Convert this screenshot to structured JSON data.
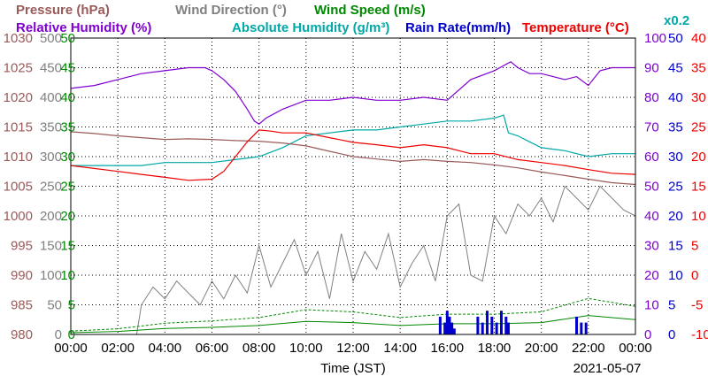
{
  "chart_data": {
    "type": "line",
    "date": "2021-05-07",
    "xlabel": "Time (JST)",
    "x_ticks": [
      "00:00",
      "02:00",
      "04:00",
      "06:00",
      "08:00",
      "10:00",
      "12:00",
      "14:00",
      "16:00",
      "18:00",
      "20:00",
      "22:00",
      "00:00"
    ],
    "legend": [
      {
        "label": "Pressure (hPa)",
        "color": "#9a5a5a"
      },
      {
        "label": "Wind Direction (°)",
        "color": "#808080"
      },
      {
        "label": "Wind Speed (m/s)",
        "color": "#008800"
      },
      {
        "label": "Relative Humidity (%)",
        "color": "#8000d0"
      },
      {
        "label": "Absolute Humidity (g/m³)",
        "color": "#00a8a8"
      },
      {
        "label": "Rain Rate(mm/h)",
        "color": "#0000cc"
      },
      {
        "label": "Temperature (°C)",
        "color": "#ee0000"
      },
      {
        "label": "x0.2",
        "color": "#00a8a8"
      }
    ],
    "axes": {
      "pressure": {
        "labels": [
          "1030",
          "1025",
          "1020",
          "1015",
          "1010",
          "1005",
          "1000",
          "995",
          "990",
          "985",
          "980"
        ],
        "range": [
          980,
          1030
        ],
        "color": "#9a5a5a"
      },
      "wind_direction": {
        "labels": [
          "500",
          "450",
          "400",
          "350",
          "300",
          "250",
          "200",
          "150",
          "100",
          "50",
          "0"
        ],
        "range": [
          0,
          500
        ],
        "color": "#808080"
      },
      "wind_speed": {
        "labels": [
          "50",
          "45",
          "40",
          "35",
          "30",
          "25",
          "20",
          "15",
          "10",
          "5",
          "0"
        ],
        "range": [
          0,
          50
        ],
        "color": "#008800"
      },
      "humidity": {
        "labels": [
          "100",
          "90",
          "80",
          "70",
          "60",
          "50",
          "40",
          "30",
          "20",
          "10",
          "0"
        ],
        "range": [
          0,
          100
        ],
        "color": "#8000d0"
      },
      "rain_rate": {
        "labels": [
          "50",
          "45",
          "40",
          "35",
          "30",
          "25",
          "20",
          "15",
          "10",
          "5",
          "0"
        ],
        "range": [
          0,
          50
        ],
        "color": "#0000cc"
      },
      "temperature": {
        "labels": [
          "40",
          "35",
          "30",
          "25",
          "20",
          "15",
          "10",
          "5",
          "0",
          "-5",
          "-10"
        ],
        "range": [
          -10,
          40
        ],
        "color": "#ee0000"
      }
    },
    "series": [
      {
        "name": "Relative Humidity (%)",
        "axis": "humidity",
        "color": "#8000d0",
        "x": [
          0,
          1,
          2,
          3,
          4,
          5,
          5.7,
          6,
          6.5,
          7,
          7.5,
          7.8,
          8,
          8.3,
          9,
          10,
          11,
          12,
          13,
          14,
          15,
          16,
          17,
          18,
          18.7,
          19,
          19.5,
          20,
          21,
          21.5,
          22,
          22.5,
          23,
          24
        ],
        "y": [
          83,
          84,
          86,
          88,
          89,
          90,
          90,
          89,
          86,
          82,
          76,
          72,
          71,
          73,
          76,
          79,
          79,
          80,
          79,
          79,
          80,
          79,
          86,
          89,
          92,
          90,
          88,
          88,
          86,
          87,
          84,
          89,
          90,
          90
        ]
      },
      {
        "name": "Absolute Humidity (g/m³)",
        "axis": "humidity",
        "color": "#00a8a8",
        "x": [
          0,
          1,
          2,
          3,
          4,
          5,
          6,
          7,
          8,
          9,
          10,
          11,
          12,
          13,
          14,
          15,
          16,
          17,
          18,
          18.4,
          18.6,
          19,
          19.5,
          20,
          21,
          22,
          23,
          24
        ],
        "y": [
          57,
          57,
          57,
          57,
          58,
          58,
          58,
          59,
          60,
          63,
          67,
          68,
          69,
          69,
          70,
          71,
          72,
          72,
          73,
          74,
          68,
          67,
          65,
          63,
          62,
          60,
          61,
          61
        ]
      },
      {
        "name": "Pressure (hPa)",
        "axis": "pressure",
        "color": "#9a5a5a",
        "x": [
          0,
          1,
          2,
          3,
          4,
          5,
          6,
          7,
          8,
          9,
          10,
          11,
          12,
          13,
          14,
          15,
          16,
          17,
          18,
          19,
          20,
          21,
          22,
          23,
          24
        ],
        "y": [
          1014.2,
          1013.9,
          1013.5,
          1013.2,
          1012.9,
          1013.0,
          1012.9,
          1012.7,
          1012.6,
          1012.3,
          1011.8,
          1010.9,
          1010.0,
          1009.6,
          1009.2,
          1009.5,
          1009.2,
          1009.0,
          1008.6,
          1008.1,
          1007.4,
          1006.8,
          1006.2,
          1005.6,
          1005.3
        ]
      },
      {
        "name": "Temperature (°C)",
        "axis": "temperature",
        "color": "#ee0000",
        "x": [
          0,
          1,
          2,
          3,
          4,
          5,
          6,
          6.5,
          7,
          7.5,
          8,
          8.5,
          9,
          10,
          11,
          12,
          13,
          14,
          15,
          16,
          17,
          18,
          19,
          20,
          21,
          22,
          23,
          24
        ],
        "y": [
          18.5,
          18.0,
          17.5,
          17.0,
          16.5,
          16.0,
          16.2,
          17.5,
          20.0,
          22.5,
          24.5,
          24.3,
          24.0,
          24.0,
          23.2,
          22.4,
          22.0,
          21.5,
          22.0,
          21.5,
          20.5,
          20.5,
          19.5,
          19.0,
          18.5,
          17.8,
          17.2,
          17.0
        ]
      },
      {
        "name": "Wind Direction (°)",
        "axis": "wind_direction",
        "color": "#808080",
        "x": [
          0,
          1,
          2,
          2.8,
          3,
          3.5,
          4,
          4.5,
          5,
          5.5,
          6,
          6.5,
          7,
          7.5,
          8,
          8.5,
          9,
          9.5,
          10,
          10.5,
          11,
          11.5,
          12,
          12.5,
          13,
          13.5,
          14,
          14.5,
          15,
          15.5,
          16,
          16.5,
          17,
          17.5,
          18,
          18.5,
          19,
          19.5,
          20,
          20.5,
          21,
          21.5,
          22,
          22.5,
          23,
          23.5,
          24
        ],
        "y": [
          0,
          0,
          0,
          0,
          50,
          80,
          60,
          90,
          70,
          50,
          90,
          60,
          100,
          70,
          150,
          80,
          120,
          160,
          100,
          140,
          60,
          170,
          90,
          140,
          110,
          170,
          80,
          120,
          150,
          90,
          200,
          220,
          100,
          90,
          200,
          170,
          220,
          200,
          230,
          190,
          250,
          230,
          210,
          250,
          230,
          210,
          200
        ]
      },
      {
        "name": "Wind Speed (m/s)",
        "axis": "wind_speed",
        "color": "#008800",
        "x": [
          0,
          2,
          4,
          6,
          8,
          10,
          12,
          14,
          16,
          18,
          20,
          22,
          24
        ],
        "y": [
          0.3,
          0.5,
          1.0,
          1.2,
          1.5,
          2.2,
          2.0,
          1.5,
          1.8,
          1.8,
          2.0,
          3.2,
          2.5
        ]
      },
      {
        "name": "Rain Rate(mm/h)",
        "axis": "rain_rate",
        "color": "#0000cc",
        "x": [
          15.7,
          15.9,
          16.0,
          16.1,
          16.2,
          16.3,
          17.3,
          17.5,
          17.7,
          17.9,
          18.1,
          18.3,
          18.5,
          18.6,
          21.5,
          21.7,
          21.9
        ],
        "y": [
          3,
          2,
          4,
          3,
          2,
          1,
          3,
          2,
          4,
          3,
          2,
          4,
          3,
          2,
          3,
          2,
          2
        ]
      }
    ]
  }
}
